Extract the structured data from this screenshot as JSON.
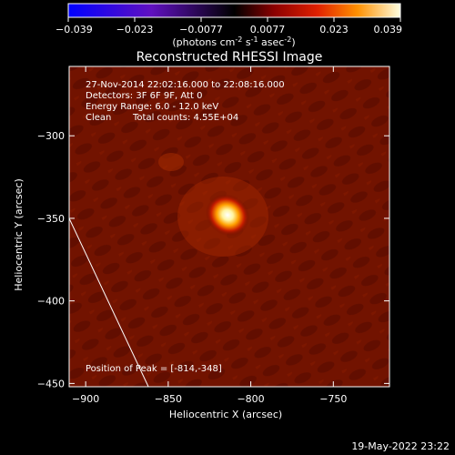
{
  "chart_data": {
    "type": "heatmap",
    "title": "Reconstructed RHESSI Image",
    "xlabel": "Heliocentric X (arcsec)",
    "ylabel": "Heliocentric Y (arcsec)",
    "xlim": [
      -910,
      -716
    ],
    "ylim": [
      -452,
      -258
    ],
    "x_ticks": [
      -900,
      -850,
      -800,
      -750
    ],
    "y_ticks": [
      -300,
      -350,
      -400,
      -450
    ],
    "colorbar": {
      "ticks": [
        "−0.039",
        "−0.023",
        "−0.0077",
        "0.0077",
        "0.023",
        "0.039"
      ],
      "range": [
        -0.039,
        0.039
      ],
      "units_label": "(photons cm",
      "units_sup1": "-2",
      "units_mid1": " s",
      "units_sup2": "-1",
      "units_mid2": " asec",
      "units_sup3": "-2",
      "units_end": ")"
    },
    "source": {
      "x": -814,
      "y": -348
    },
    "limb_line": [
      [
        -910,
        -350
      ],
      [
        -862,
        -452
      ]
    ],
    "annotations": {
      "time": "27-Nov-2014 22:02:16.000 to 22:08:16.000",
      "detectors": "Detectors: 3F 6F 9F, Att 0",
      "energy": "Energy Range: 6.0 - 12.0 keV",
      "method": "Clean",
      "counts": "Total counts: 4.55E+04",
      "peak": "Position of Peak = [-814,-348]"
    },
    "footer_date": "19-May-2022 23:22"
  }
}
